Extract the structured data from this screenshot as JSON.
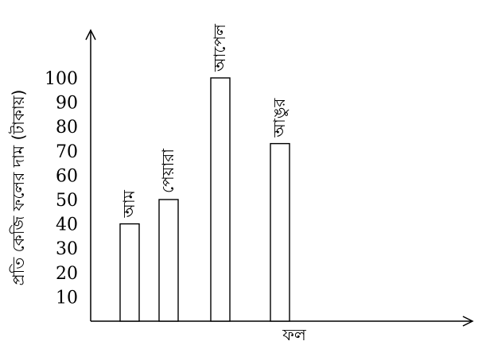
{
  "chart_data": {
    "type": "bar",
    "categories": [
      "আম",
      "পেয়ারা",
      "আপেল",
      "আঙুর"
    ],
    "values": [
      40,
      50,
      100,
      73
    ],
    "xlabel": "ফল",
    "ylabel": "প্রতি কেজি ফলের দাম (টাকায়)",
    "yticks": [
      10,
      20,
      30,
      40,
      50,
      60,
      70,
      80,
      90,
      100
    ],
    "ylim": [
      0,
      110
    ],
    "grid": false,
    "legend": "none",
    "bar_fill": "#ffffff",
    "bar_stroke": "#000000",
    "axis_color": "#000000"
  }
}
